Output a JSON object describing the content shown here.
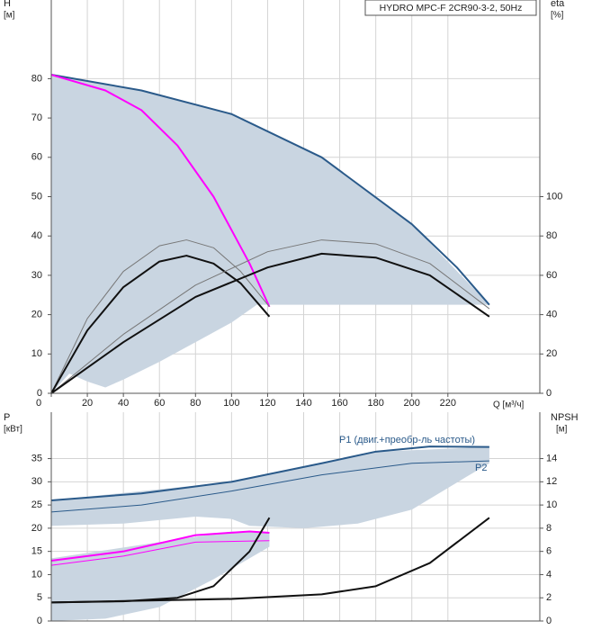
{
  "chart_data": [
    {
      "type": "line",
      "title": "HYDRO MPC-F 2CR90-3-2, 50Hz",
      "ylabel": "H",
      "yunit": "[м]",
      "y2label": "eta",
      "y2unit": "[%]",
      "xlabel": "Q [м³/ч]",
      "xlim": [
        0,
        271
      ],
      "xticks": [
        0,
        20,
        40,
        60,
        80,
        100,
        120,
        140,
        160,
        180,
        200,
        220
      ],
      "ylim": [
        0,
        100
      ],
      "yticks": [
        0,
        10,
        20,
        30,
        40,
        50,
        60,
        70,
        80
      ],
      "y2lim": [
        0,
        200
      ],
      "y2ticks": [
        0,
        20,
        40,
        60,
        80,
        100
      ],
      "grid": true,
      "regions": [
        {
          "color": "#c9d5e1",
          "x": [
            0,
            50,
            100,
            150,
            200,
            243,
            114,
            100,
            80,
            60,
            40,
            30,
            20,
            10,
            0
          ],
          "values": [
            81,
            77,
            71,
            60,
            43,
            22.5,
            22.5,
            18,
            13,
            8,
            3.5,
            1.5,
            3,
            5,
            0
          ]
        }
      ],
      "series": [
        {
          "color": "#2a5a8a",
          "width": 2,
          "x": [
            0,
            50,
            100,
            150,
            200,
            225,
            243
          ],
          "values": [
            81,
            77,
            71,
            60,
            43,
            32,
            22.5
          ]
        },
        {
          "color": "#ff00ff",
          "width": 2,
          "x": [
            0,
            30,
            50,
            70,
            90,
            110,
            121
          ],
          "values": [
            81,
            77,
            72,
            63,
            50,
            33,
            22
          ]
        },
        {
          "color": "#777777",
          "width": 1,
          "axis": "y2",
          "x": [
            0,
            20,
            40,
            60,
            75,
            90,
            105,
            121
          ],
          "values": [
            0,
            38,
            62,
            75,
            78,
            74,
            62,
            44
          ]
        },
        {
          "color": "#111111",
          "width": 2,
          "axis": "y2",
          "x": [
            0,
            20,
            40,
            60,
            75,
            90,
            105,
            121
          ],
          "values": [
            0,
            32,
            54,
            67,
            70,
            66,
            56,
            39
          ]
        },
        {
          "color": "#777777",
          "width": 1,
          "axis": "y2",
          "x": [
            0,
            40,
            80,
            120,
            150,
            180,
            210,
            243
          ],
          "values": [
            0,
            30,
            55,
            72,
            78,
            76,
            66,
            43
          ]
        },
        {
          "color": "#111111",
          "width": 2,
          "axis": "y2",
          "x": [
            0,
            40,
            80,
            120,
            150,
            180,
            210,
            243
          ],
          "values": [
            0,
            26,
            49,
            64,
            71,
            69,
            60,
            39
          ]
        }
      ]
    },
    {
      "type": "line",
      "ylabel": "P",
      "yunit": "[кВт]",
      "y2label": "NPSH",
      "y2unit": "[м]",
      "xlim": [
        0,
        271
      ],
      "ylim": [
        0,
        45
      ],
      "yticks": [
        0,
        5,
        10,
        15,
        20,
        25,
        30,
        35
      ],
      "y2lim": [
        0,
        18
      ],
      "y2ticks": [
        0,
        2,
        4,
        6,
        8,
        10,
        12,
        14
      ],
      "grid": true,
      "regions": [
        {
          "color": "#c9d5e1",
          "x": [
            0,
            100,
            150,
            180,
            243,
            243,
            230,
            200,
            170,
            140,
            110,
            100,
            80,
            40,
            0
          ],
          "values": [
            26,
            30,
            34,
            36.5,
            37.5,
            34,
            31,
            24,
            21,
            20,
            20.5,
            22,
            22.5,
            21,
            20.5
          ]
        },
        {
          "color": "#c9d5e1",
          "x": [
            0,
            60,
            100,
            121,
            121,
            90,
            60,
            30,
            0
          ],
          "values": [
            13.5,
            17,
            19.3,
            19,
            16,
            9,
            3,
            0.5,
            0
          ]
        }
      ],
      "series": [
        {
          "name": "P1 (двиг.+преобр-ль частоты)",
          "color": "#2a5a8a",
          "width": 2,
          "x": [
            0,
            50,
            100,
            150,
            180,
            210,
            243
          ],
          "values": [
            26,
            27.5,
            30,
            34,
            36.5,
            37.6,
            37.5
          ]
        },
        {
          "name": "P2",
          "color": "#2a5a8a",
          "width": 1,
          "x": [
            0,
            50,
            100,
            150,
            200,
            243
          ],
          "values": [
            23.5,
            25,
            28,
            31.5,
            34,
            34.5
          ]
        },
        {
          "color": "#ff00ff",
          "width": 2,
          "x": [
            0,
            40,
            80,
            110,
            121
          ],
          "values": [
            13,
            15,
            18.5,
            19.3,
            19
          ]
        },
        {
          "color": "#ff00ff",
          "width": 1,
          "x": [
            0,
            40,
            80,
            121
          ],
          "values": [
            12,
            14,
            17,
            17.3
          ]
        },
        {
          "color": "#111111",
          "width": 2,
          "axis": "y2",
          "x": [
            0,
            40,
            70,
            90,
            110,
            121
          ],
          "values": [
            1.6,
            1.7,
            2,
            3,
            6,
            8.9
          ]
        },
        {
          "color": "#111111",
          "width": 2,
          "axis": "y2",
          "x": [
            0,
            100,
            150,
            180,
            210,
            243
          ],
          "values": [
            1.6,
            1.9,
            2.3,
            3,
            5,
            8.9
          ]
        }
      ]
    }
  ]
}
